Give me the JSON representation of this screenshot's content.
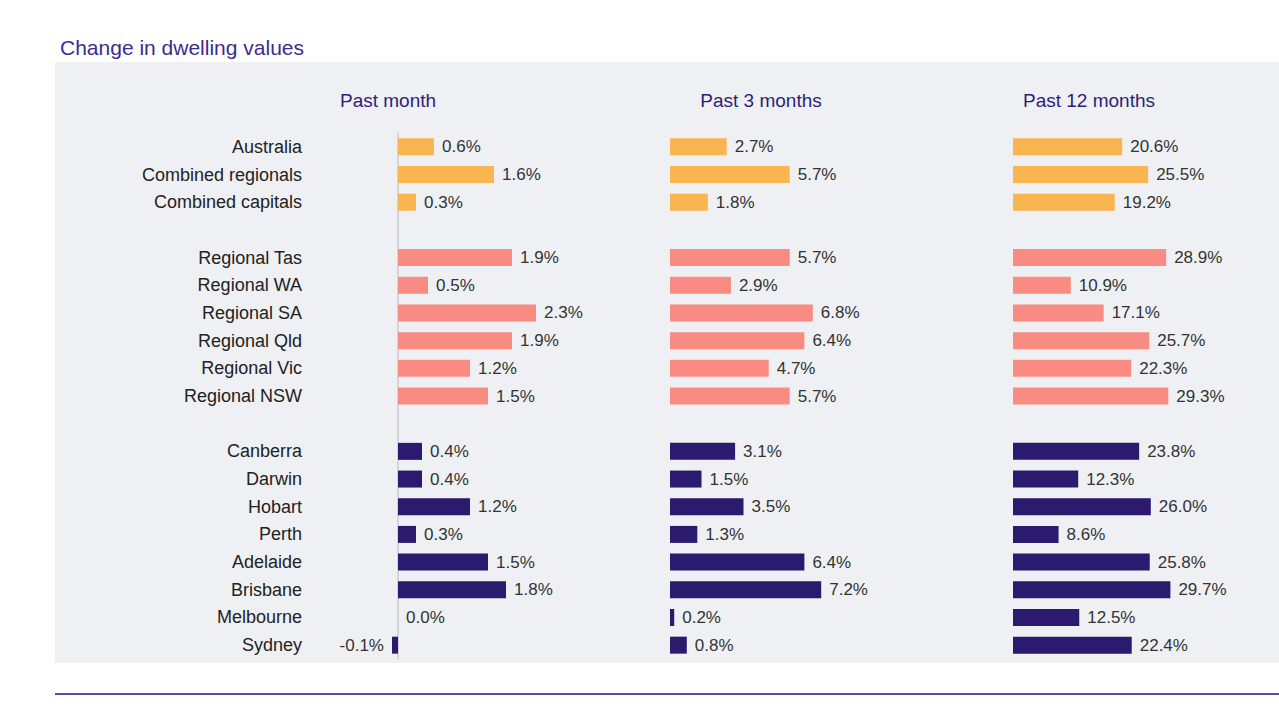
{
  "title": "Change in dwelling values",
  "chart_data": [
    {
      "type": "bar",
      "title": "Past month",
      "orientation": "horizontal",
      "data_labels": true,
      "tick_labels": "y",
      "grid": false,
      "categories": [
        "Australia",
        "Combined regionals",
        "Combined capitals",
        null,
        "Regional Tas",
        "Regional WA",
        "Regional SA",
        "Regional Qld",
        "Regional Vic",
        "Regional NSW",
        null,
        "Canberra",
        "Darwin",
        "Hobart",
        "Perth",
        "Adelaide",
        "Brisbane",
        "Melbourne",
        "Sydney"
      ],
      "values": [
        0.6,
        1.6,
        0.3,
        null,
        1.9,
        0.5,
        2.3,
        1.9,
        1.2,
        1.5,
        null,
        0.4,
        0.4,
        1.2,
        0.3,
        1.5,
        1.8,
        0.0,
        -0.1
      ],
      "value_labels": [
        "0.6%",
        "1.6%",
        "0.3%",
        null,
        "1.9%",
        "0.5%",
        "2.3%",
        "1.9%",
        "1.2%",
        "1.5%",
        null,
        "0.4%",
        "0.4%",
        "1.2%",
        "0.3%",
        "1.5%",
        "1.8%",
        "0.0%",
        "-0.1%"
      ],
      "colors": [
        "#f9b54f",
        "#f9b54f",
        "#f9b54f",
        null,
        "#f98b82",
        "#f98b82",
        "#f98b82",
        "#f98b82",
        "#f98b82",
        "#f98b82",
        null,
        "#2b1a6e",
        "#2b1a6e",
        "#2b1a6e",
        "#2b1a6e",
        "#2b1a6e",
        "#2b1a6e",
        "#2b1a6e",
        "#2b1a6e"
      ],
      "xlim": [
        -0.5,
        3.0
      ]
    },
    {
      "type": "bar",
      "title": "Past 3 months",
      "orientation": "horizontal",
      "data_labels": true,
      "tick_labels": false,
      "grid": false,
      "categories": [
        "Australia",
        "Combined regionals",
        "Combined capitals",
        null,
        "Regional Tas",
        "Regional WA",
        "Regional SA",
        "Regional Qld",
        "Regional Vic",
        "Regional NSW",
        null,
        "Canberra",
        "Darwin",
        "Hobart",
        "Perth",
        "Adelaide",
        "Brisbane",
        "Melbourne",
        "Sydney"
      ],
      "values": [
        2.7,
        5.7,
        1.8,
        null,
        5.7,
        2.9,
        6.8,
        6.4,
        4.7,
        5.7,
        null,
        3.1,
        1.5,
        3.5,
        1.3,
        6.4,
        7.2,
        0.2,
        0.8
      ],
      "value_labels": [
        "2.7%",
        "5.7%",
        "1.8%",
        null,
        "5.7%",
        "2.9%",
        "6.8%",
        "6.4%",
        "4.7%",
        "5.7%",
        null,
        "3.1%",
        "1.5%",
        "3.5%",
        "1.3%",
        "6.4%",
        "7.2%",
        "0.2%",
        "0.8%"
      ],
      "colors": [
        "#f9b54f",
        "#f9b54f",
        "#f9b54f",
        null,
        "#f98b82",
        "#f98b82",
        "#f98b82",
        "#f98b82",
        "#f98b82",
        "#f98b82",
        null,
        "#2b1a6e",
        "#2b1a6e",
        "#2b1a6e",
        "#2b1a6e",
        "#2b1a6e",
        "#2b1a6e",
        "#2b1a6e",
        "#2b1a6e"
      ],
      "xlim": [
        0,
        10
      ]
    },
    {
      "type": "bar",
      "title": "Past 12 months",
      "orientation": "horizontal",
      "data_labels": true,
      "tick_labels": false,
      "grid": false,
      "categories": [
        "Australia",
        "Combined regionals",
        "Combined capitals",
        null,
        "Regional Tas",
        "Regional WA",
        "Regional SA",
        "Regional Qld",
        "Regional Vic",
        "Regional NSW",
        null,
        "Canberra",
        "Darwin",
        "Hobart",
        "Perth",
        "Adelaide",
        "Brisbane",
        "Melbourne",
        "Sydney"
      ],
      "values": [
        20.6,
        25.5,
        19.2,
        null,
        28.9,
        10.9,
        17.1,
        25.7,
        22.3,
        29.3,
        null,
        23.8,
        12.3,
        26.0,
        8.6,
        25.8,
        29.7,
        12.5,
        22.4
      ],
      "value_labels": [
        "20.6%",
        "25.5%",
        "19.2%",
        null,
        "28.9%",
        "10.9%",
        "17.1%",
        "25.7%",
        "22.3%",
        "29.3%",
        null,
        "23.8%",
        "12.3%",
        "26.0%",
        "8.6%",
        "25.8%",
        "29.7%",
        "12.5%",
        "22.4%"
      ],
      "colors": [
        "#f9b54f",
        "#f9b54f",
        "#f9b54f",
        null,
        "#f98b82",
        "#f98b82",
        "#f98b82",
        "#f98b82",
        "#f98b82",
        "#f98b82",
        null,
        "#2b1a6e",
        "#2b1a6e",
        "#2b1a6e",
        "#2b1a6e",
        "#2b1a6e",
        "#2b1a6e",
        "#2b1a6e",
        "#2b1a6e"
      ],
      "xlim": [
        0,
        40
      ]
    }
  ]
}
